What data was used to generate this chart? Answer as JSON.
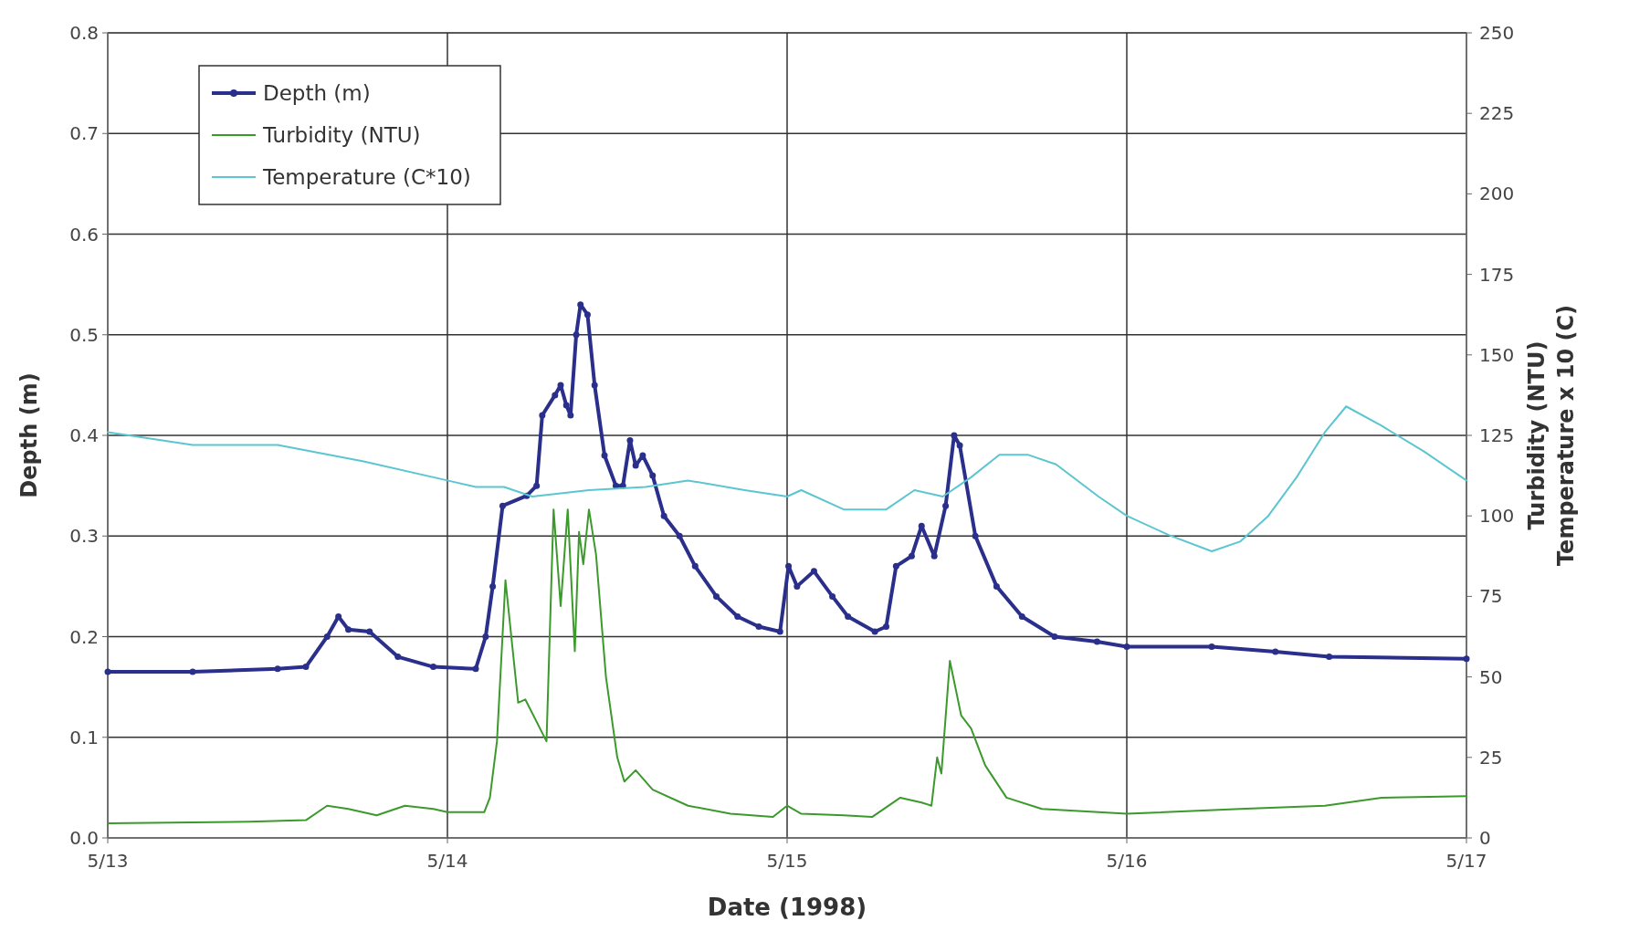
{
  "chart_data": {
    "type": "line",
    "xlabel": "Date (1998)",
    "ylabel": "Depth (m)",
    "y2label": "Turbidity (NTU)\nTemperature x 10 (C)",
    "xlim": [
      "1998-05-13",
      "1998-05-17"
    ],
    "xticks": [
      {
        "value": "1998-05-13",
        "label": "5/13"
      },
      {
        "value": "1998-05-14",
        "label": "5/14"
      },
      {
        "value": "1998-05-15",
        "label": "5/15"
      },
      {
        "value": "1998-05-16",
        "label": "5/16"
      },
      {
        "value": "1998-05-17",
        "label": "5/17"
      }
    ],
    "ylim": [
      0,
      0.8
    ],
    "yticks": [
      {
        "value": 0,
        "label": "0.0"
      },
      0.1,
      0.2,
      0.3,
      0.4,
      0.5,
      0.6,
      0.7,
      0.8
    ],
    "y2lim": [
      0,
      250
    ],
    "y2ticks": [
      0,
      25,
      50,
      75,
      100,
      125,
      150,
      175,
      200,
      225,
      250
    ],
    "grid": true,
    "legend": "top left",
    "line_style": "solid",
    "series": [
      {
        "name": "Depth (m)",
        "color": "#2b2f8c",
        "marker": "circle",
        "x": [
          "1998-05-13T00:00",
          "1998-05-13T06:00",
          "1998-05-13T12:00",
          "1998-05-13T14:00",
          "1998-05-13T15:30",
          "1998-05-13T16:18",
          "1998-05-13T17:00",
          "1998-05-13T18:30",
          "1998-05-13T20:30",
          "1998-05-13T23:00",
          "1998-05-14T02:00",
          "1998-05-14T02:42",
          "1998-05-14T03:12",
          "1998-05-14T03:54",
          "1998-05-14T05:36",
          "1998-05-14T06:18",
          "1998-05-14T06:42",
          "1998-05-14T07:36",
          "1998-05-14T08:00",
          "1998-05-14T08:24",
          "1998-05-14T08:42",
          "1998-05-14T09:06",
          "1998-05-14T09:24",
          "1998-05-14T09:54",
          "1998-05-14T10:24",
          "1998-05-14T11:06",
          "1998-05-14T11:54",
          "1998-05-14T12:24",
          "1998-05-14T12:54",
          "1998-05-14T13:18",
          "1998-05-14T13:48",
          "1998-05-14T14:30",
          "1998-05-14T15:18",
          "1998-05-14T16:24",
          "1998-05-14T17:30",
          "1998-05-14T19:00",
          "1998-05-14T20:30",
          "1998-05-14T22:00",
          "1998-05-14T23:30",
          "1998-05-15T00:06",
          "1998-05-15T00:42",
          "1998-05-15T01:54",
          "1998-05-15T03:12",
          "1998-05-15T04:18",
          "1998-05-15T06:12",
          "1998-05-15T07:00",
          "1998-05-15T07:42",
          "1998-05-15T08:48",
          "1998-05-15T09:30",
          "1998-05-15T10:24",
          "1998-05-15T11:12",
          "1998-05-15T11:48",
          "1998-05-15T12:12",
          "1998-05-15T13:18",
          "1998-05-15T14:48",
          "1998-05-15T16:36",
          "1998-05-15T18:54",
          "1998-05-15T21:54",
          "1998-05-16T00:00",
          "1998-05-16T06:00",
          "1998-05-16T10:30",
          "1998-05-16T14:18",
          "1998-05-17T00:00"
        ],
        "values": [
          0.165,
          0.165,
          0.168,
          0.17,
          0.2,
          0.22,
          0.207,
          0.205,
          0.18,
          0.17,
          0.168,
          0.2,
          0.25,
          0.33,
          0.34,
          0.35,
          0.42,
          0.44,
          0.45,
          0.43,
          0.42,
          0.5,
          0.53,
          0.52,
          0.45,
          0.38,
          0.35,
          0.35,
          0.395,
          0.37,
          0.38,
          0.36,
          0.32,
          0.3,
          0.27,
          0.24,
          0.22,
          0.21,
          0.205,
          0.27,
          0.25,
          0.265,
          0.24,
          0.22,
          0.205,
          0.21,
          0.27,
          0.28,
          0.31,
          0.28,
          0.33,
          0.4,
          0.39,
          0.3,
          0.25,
          0.22,
          0.2,
          0.195,
          0.19,
          0.19,
          0.185,
          0.18,
          0.178
        ]
      },
      {
        "name": "Turbidity (NTU)",
        "color": "#3c9a2c",
        "marker": "none",
        "axis": "y2",
        "x": [
          "1998-05-13T00:00",
          "1998-05-13T10:00",
          "1998-05-13T14:00",
          "1998-05-13T15:30",
          "1998-05-13T17:00",
          "1998-05-13T19:00",
          "1998-05-13T21:00",
          "1998-05-13T23:00",
          "1998-05-14T00:00",
          "1998-05-14T02:36",
          "1998-05-14T03:00",
          "1998-05-14T03:30",
          "1998-05-14T04:06",
          "1998-05-14T05:00",
          "1998-05-14T05:30",
          "1998-05-14T07:00",
          "1998-05-14T07:30",
          "1998-05-14T08:00",
          "1998-05-14T08:30",
          "1998-05-14T09:00",
          "1998-05-14T09:18",
          "1998-05-14T09:36",
          "1998-05-14T10:00",
          "1998-05-14T10:30",
          "1998-05-14T11:12",
          "1998-05-14T12:00",
          "1998-05-14T12:30",
          "1998-05-14T13:18",
          "1998-05-14T14:30",
          "1998-05-14T17:00",
          "1998-05-14T20:00",
          "1998-05-14T23:00",
          "1998-05-15T00:00",
          "1998-05-15T01:00",
          "1998-05-15T04:00",
          "1998-05-15T06:00",
          "1998-05-15T08:00",
          "1998-05-15T09:30",
          "1998-05-15T10:12",
          "1998-05-15T10:36",
          "1998-05-15T10:54",
          "1998-05-15T11:30",
          "1998-05-15T12:18",
          "1998-05-15T13:00",
          "1998-05-15T14:00",
          "1998-05-15T15:30",
          "1998-05-15T18:00",
          "1998-05-16T00:00",
          "1998-05-16T08:00",
          "1998-05-16T14:00",
          "1998-05-16T18:00",
          "1998-05-17T00:00"
        ],
        "values": [
          4.5,
          5,
          5.5,
          10,
          9,
          7,
          10,
          9,
          8,
          8,
          12.5,
          30,
          80,
          42,
          43,
          30,
          102,
          72,
          102,
          58,
          95,
          85,
          102,
          88,
          50,
          25,
          17.5,
          21,
          15,
          10,
          7.5,
          6.5,
          10,
          7.5,
          7,
          6.5,
          12.5,
          11,
          10,
          25,
          20,
          55,
          38,
          34,
          22.5,
          12.5,
          9,
          7.5,
          9,
          10,
          12.5,
          13
        ]
      },
      {
        "name": "Temperature (C*10)",
        "color": "#5cc6d0",
        "marker": "none",
        "axis": "y2",
        "x": [
          "1998-05-13T00:00",
          "1998-05-13T06:00",
          "1998-05-13T12:00",
          "1998-05-13T18:00",
          "1998-05-14T00:00",
          "1998-05-14T02:00",
          "1998-05-14T04:00",
          "1998-05-14T06:00",
          "1998-05-14T10:00",
          "1998-05-14T14:00",
          "1998-05-14T17:00",
          "1998-05-14T21:00",
          "1998-05-15T00:00",
          "1998-05-15T01:00",
          "1998-05-15T04:00",
          "1998-05-15T07:00",
          "1998-05-15T09:00",
          "1998-05-15T11:00",
          "1998-05-15T13:00",
          "1998-05-15T15:00",
          "1998-05-15T17:00",
          "1998-05-15T19:00",
          "1998-05-15T22:00",
          "1998-05-16T00:00",
          "1998-05-16T03:00",
          "1998-05-16T06:00",
          "1998-05-16T08:00",
          "1998-05-16T10:00",
          "1998-05-16T12:00",
          "1998-05-16T14:00",
          "1998-05-16T15:30",
          "1998-05-16T18:00",
          "1998-05-16T21:00",
          "1998-05-17T00:00"
        ],
        "values": [
          126,
          122,
          122,
          117,
          111,
          109,
          109,
          106,
          108,
          109,
          111,
          108,
          106,
          108,
          102,
          102,
          108,
          106,
          112,
          119,
          119,
          116,
          106,
          100,
          94,
          89,
          92,
          100,
          112,
          126,
          134,
          128,
          120,
          111
        ]
      }
    ]
  }
}
